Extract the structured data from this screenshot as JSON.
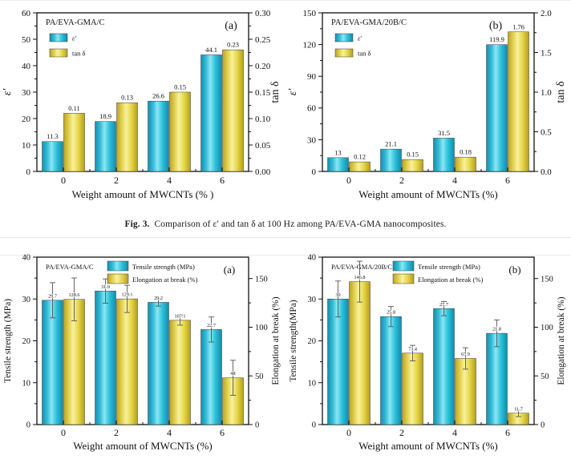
{
  "caption": {
    "label": "Fig. 3.",
    "text": "Comparison of ε′ and tan δ at 100 Hz among PA/EVA-GMA nanocomposites."
  },
  "colors": {
    "bar_cyan": "#2BBFDB",
    "bar_yellow": "#E9D94B",
    "frame": "#111111",
    "error_bar": "#555555"
  },
  "chart_data": [
    {
      "id": "dielectric-c",
      "type": "bar",
      "row": "top",
      "panel_label": "(a)",
      "title": "PA/EVA-GMA/C",
      "categories": [
        "0",
        "2",
        "4",
        "6"
      ],
      "xlabel": "Weight amount of MWCNTs (% )",
      "legend_position": "under-title",
      "panel_dx": -22,
      "left_axis": {
        "label": "ε′",
        "range": [
          0,
          60
        ],
        "ticks": [
          "0",
          "10",
          "20",
          "30",
          "40",
          "50",
          "60"
        ]
      },
      "right_axis": {
        "label": "tan δ",
        "range": [
          0,
          0.3
        ],
        "ticks": [
          "0.00",
          "0.05",
          "0.10",
          "0.15",
          "0.20",
          "0.25",
          "0.30"
        ]
      },
      "series": [
        {
          "name": "ε′",
          "axis": "left",
          "color": "cyan",
          "values": [
            11.3,
            18.9,
            26.6,
            44.1
          ],
          "value_labels": [
            "11.3",
            "18.9",
            "26.6",
            "44.1"
          ]
        },
        {
          "name": "tan δ",
          "axis": "right",
          "color": "yellow",
          "values": [
            0.11,
            0.13,
            0.15,
            0.23
          ],
          "value_labels": [
            "0.11",
            "0.13",
            "0.15",
            "0.23"
          ]
        }
      ]
    },
    {
      "id": "dielectric-20b",
      "type": "bar",
      "row": "top",
      "panel_label": "(b)",
      "title": "PA/EVA-GMA/20B/C",
      "categories": [
        "0",
        "2",
        "4",
        "6"
      ],
      "xlabel": "Weight amount of MWCNTs (%)",
      "legend_position": "under-title",
      "panel_dx": -48,
      "left_axis": {
        "label": "ε′",
        "range": [
          0,
          150
        ],
        "ticks": [
          "0",
          "30",
          "60",
          "90",
          "120",
          "150"
        ]
      },
      "right_axis": {
        "label": "tan δ",
        "range": [
          0,
          2.0
        ],
        "ticks": [
          "0.0",
          "0.5",
          "1.0",
          "1.5",
          "2.0"
        ]
      },
      "series": [
        {
          "name": "ε′",
          "axis": "left",
          "color": "cyan",
          "values": [
            13,
            21.1,
            31.5,
            119.9
          ],
          "value_labels": [
            "13",
            "21.1",
            "31.5",
            "119.9"
          ]
        },
        {
          "name": "tan δ",
          "axis": "right",
          "color": "yellow",
          "values": [
            0.12,
            0.15,
            0.18,
            1.76
          ],
          "value_labels": [
            "0.12",
            "0.15",
            "0.18",
            "1.76"
          ]
        }
      ]
    },
    {
      "id": "mechanical-c",
      "type": "bar",
      "row": "bottom",
      "panel_label": "(a)",
      "title": "PA/EVA-GMA/C",
      "categories": [
        "0",
        "2",
        "4",
        "6"
      ],
      "xlabel": "Weight amount of MWCNTs (%)",
      "legend_position": "top-center",
      "panel_dx": -24,
      "left_axis": {
        "label": "Tensile strength (MPa)",
        "range": [
          0,
          40
        ],
        "ticks": [
          "0",
          "10",
          "20",
          "30",
          "40"
        ]
      },
      "right_axis": {
        "label": "Elongation at break (%)",
        "range": [
          0,
          172
        ],
        "ticks": [
          "0",
          "50",
          "100",
          "150"
        ]
      },
      "series": [
        {
          "name": "Tensile strength (MPa)",
          "axis": "left",
          "color": "cyan",
          "values": [
            29.7,
            31.9,
            29.2,
            22.7
          ],
          "value_labels": [
            "29.7",
            "31.9",
            "29.2",
            "22.7"
          ],
          "errors": [
            4.2,
            2.9,
            0.9,
            3.0
          ]
        },
        {
          "name": "Elongation at break (%)",
          "axis": "right",
          "color": "yellow",
          "values": [
            128.6,
            129.1,
            107.1,
            48
          ],
          "value_labels": [
            "128.6",
            "129.1",
            "107.1",
            "48"
          ],
          "errors": [
            22,
            14,
            5,
            18
          ]
        }
      ]
    },
    {
      "id": "mechanical-20b",
      "type": "bar",
      "row": "bottom",
      "panel_label": "(b)",
      "title": "PA/EVA-GMA/20B/C",
      "categories": [
        "0",
        "2",
        "4",
        "6"
      ],
      "xlabel": "Weight amount of MWCNTs (%)",
      "legend_position": "top-center",
      "panel_dx": -24,
      "left_axis": {
        "label": "Tensile strength(MPa)",
        "range": [
          0,
          40
        ],
        "ticks": [
          "0",
          "10",
          "20",
          "30",
          "40"
        ]
      },
      "right_axis": {
        "label": "Elongation at break (%)",
        "range": [
          0,
          172
        ],
        "ticks": [
          "0",
          "50",
          "100",
          "150"
        ]
      },
      "series": [
        {
          "name": "Tensile strength (MPa)",
          "axis": "left",
          "color": "cyan",
          "values": [
            30,
            25.8,
            27.7,
            21.8
          ],
          "value_labels": [
            "30",
            "25.8",
            "27.7",
            "21.8"
          ],
          "errors": [
            4.3,
            2.4,
            1.7,
            3.2
          ]
        },
        {
          "name": "Elongation at break (%)",
          "axis": "right",
          "color": "yellow",
          "values": [
            146.8,
            73.4,
            67.9,
            11.7
          ],
          "value_labels": [
            "146.8",
            "73.4",
            "67.9",
            "11.7"
          ],
          "errors": [
            21,
            8,
            11,
            3.5
          ]
        }
      ]
    }
  ]
}
